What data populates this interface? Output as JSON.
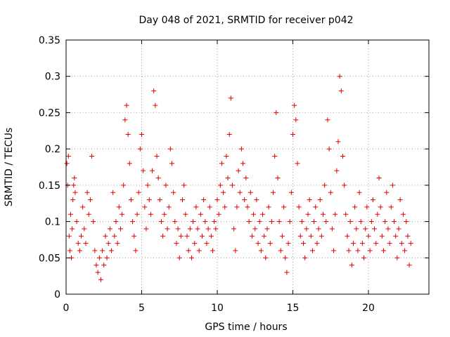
{
  "chart_data": {
    "type": "scatter",
    "title": "Day 048 of 2021, SRMTID for receiver p042",
    "xlabel": "GPS time / hours",
    "ylabel": "SRMTID / TECUs",
    "xlim": [
      0,
      24
    ],
    "ylim": [
      0,
      0.35
    ],
    "xticks": [
      0,
      5,
      10,
      15,
      20
    ],
    "xtick_labels": [
      "0",
      "5",
      "10",
      "15",
      "20"
    ],
    "yticks": [
      0,
      0.05,
      0.1,
      0.15,
      0.2,
      0.25,
      0.3,
      0.35
    ],
    "ytick_labels": [
      "0",
      "0.05",
      "0.1",
      "0.15",
      "0.2",
      "0.25",
      "0.3",
      "0.35"
    ],
    "grid": true,
    "marker": "plus",
    "color": "#e00000",
    "series": [
      {
        "name": "SRMTID",
        "points": [
          [
            0.05,
            0.18
          ],
          [
            0.1,
            0.15
          ],
          [
            0.15,
            0.19
          ],
          [
            0.2,
            0.08
          ],
          [
            0.25,
            0.06
          ],
          [
            0.3,
            0.11
          ],
          [
            0.35,
            0.05
          ],
          [
            0.4,
            0.09
          ],
          [
            0.45,
            0.13
          ],
          [
            0.5,
            0.15
          ],
          [
            0.55,
            0.16
          ],
          [
            0.6,
            0.14
          ],
          [
            0.7,
            0.1
          ],
          [
            0.8,
            0.07
          ],
          [
            0.9,
            0.06
          ],
          [
            1.0,
            0.08
          ],
          [
            1.1,
            0.12
          ],
          [
            1.2,
            0.09
          ],
          [
            1.3,
            0.07
          ],
          [
            1.4,
            0.14
          ],
          [
            1.5,
            0.11
          ],
          [
            1.6,
            0.13
          ],
          [
            1.7,
            0.19
          ],
          [
            1.8,
            0.1
          ],
          [
            1.9,
            0.06
          ],
          [
            2.0,
            0.04
          ],
          [
            2.1,
            0.03
          ],
          [
            2.2,
            0.05
          ],
          [
            2.3,
            0.02
          ],
          [
            2.4,
            0.06
          ],
          [
            2.5,
            0.04
          ],
          [
            2.6,
            0.08
          ],
          [
            2.7,
            0.05
          ],
          [
            2.8,
            0.07
          ],
          [
            2.9,
            0.09
          ],
          [
            3.0,
            0.06
          ],
          [
            3.1,
            0.14
          ],
          [
            3.2,
            0.08
          ],
          [
            3.3,
            0.1
          ],
          [
            3.4,
            0.07
          ],
          [
            3.5,
            0.12
          ],
          [
            3.6,
            0.09
          ],
          [
            3.7,
            0.11
          ],
          [
            3.8,
            0.15
          ],
          [
            3.9,
            0.24
          ],
          [
            4.0,
            0.26
          ],
          [
            4.1,
            0.22
          ],
          [
            4.2,
            0.18
          ],
          [
            4.3,
            0.13
          ],
          [
            4.4,
            0.1
          ],
          [
            4.5,
            0.08
          ],
          [
            4.6,
            0.06
          ],
          [
            4.7,
            0.11
          ],
          [
            4.8,
            0.14
          ],
          [
            4.9,
            0.2
          ],
          [
            5.0,
            0.22
          ],
          [
            5.1,
            0.17
          ],
          [
            5.2,
            0.12
          ],
          [
            5.3,
            0.09
          ],
          [
            5.4,
            0.15
          ],
          [
            5.5,
            0.13
          ],
          [
            5.6,
            0.11
          ],
          [
            5.7,
            0.17
          ],
          [
            5.8,
            0.28
          ],
          [
            5.9,
            0.26
          ],
          [
            6.0,
            0.19
          ],
          [
            6.1,
            0.16
          ],
          [
            6.2,
            0.13
          ],
          [
            6.3,
            0.1
          ],
          [
            6.4,
            0.08
          ],
          [
            6.5,
            0.11
          ],
          [
            6.6,
            0.15
          ],
          [
            6.7,
            0.09
          ],
          [
            6.8,
            0.12
          ],
          [
            6.9,
            0.2
          ],
          [
            7.0,
            0.18
          ],
          [
            7.1,
            0.14
          ],
          [
            7.2,
            0.1
          ],
          [
            7.3,
            0.07
          ],
          [
            7.4,
            0.09
          ],
          [
            7.5,
            0.05
          ],
          [
            7.6,
            0.08
          ],
          [
            7.7,
            0.13
          ],
          [
            7.8,
            0.15
          ],
          [
            7.9,
            0.11
          ],
          [
            8.0,
            0.08
          ],
          [
            8.1,
            0.06
          ],
          [
            8.2,
            0.09
          ],
          [
            8.3,
            0.05
          ],
          [
            8.4,
            0.1
          ],
          [
            8.5,
            0.07
          ],
          [
            8.6,
            0.12
          ],
          [
            8.7,
            0.09
          ],
          [
            8.8,
            0.06
          ],
          [
            8.9,
            0.11
          ],
          [
            9.0,
            0.08
          ],
          [
            9.1,
            0.13
          ],
          [
            9.2,
            0.1
          ],
          [
            9.3,
            0.07
          ],
          [
            9.4,
            0.09
          ],
          [
            9.5,
            0.12
          ],
          [
            9.6,
            0.08
          ],
          [
            9.7,
            0.06
          ],
          [
            9.8,
            0.1
          ],
          [
            9.9,
            0.09
          ],
          [
            10.0,
            0.13
          ],
          [
            10.1,
            0.11
          ],
          [
            10.2,
            0.15
          ],
          [
            10.3,
            0.18
          ],
          [
            10.4,
            0.14
          ],
          [
            10.5,
            0.12
          ],
          [
            10.6,
            0.19
          ],
          [
            10.7,
            0.16
          ],
          [
            10.8,
            0.22
          ],
          [
            10.9,
            0.27
          ],
          [
            11.0,
            0.15
          ],
          [
            11.1,
            0.09
          ],
          [
            11.2,
            0.06
          ],
          [
            11.3,
            0.12
          ],
          [
            11.4,
            0.17
          ],
          [
            11.5,
            0.14
          ],
          [
            11.6,
            0.2
          ],
          [
            11.7,
            0.18
          ],
          [
            11.8,
            0.13
          ],
          [
            11.9,
            0.16
          ],
          [
            12.0,
            0.12
          ],
          [
            12.1,
            0.1
          ],
          [
            12.2,
            0.14
          ],
          [
            12.3,
            0.08
          ],
          [
            12.4,
            0.11
          ],
          [
            12.5,
            0.09
          ],
          [
            12.6,
            0.13
          ],
          [
            12.7,
            0.07
          ],
          [
            12.8,
            0.1
          ],
          [
            12.9,
            0.06
          ],
          [
            13.0,
            0.11
          ],
          [
            13.1,
            0.08
          ],
          [
            13.2,
            0.05
          ],
          [
            13.3,
            0.09
          ],
          [
            13.4,
            0.12
          ],
          [
            13.5,
            0.07
          ],
          [
            13.6,
            0.1
          ],
          [
            13.7,
            0.14
          ],
          [
            13.8,
            0.19
          ],
          [
            13.9,
            0.25
          ],
          [
            14.0,
            0.16
          ],
          [
            14.1,
            0.1
          ],
          [
            14.2,
            0.06
          ],
          [
            14.3,
            0.08
          ],
          [
            14.4,
            0.12
          ],
          [
            14.5,
            0.05
          ],
          [
            14.6,
            0.03
          ],
          [
            14.7,
            0.07
          ],
          [
            14.8,
            0.1
          ],
          [
            14.9,
            0.14
          ],
          [
            15.0,
            0.22
          ],
          [
            15.1,
            0.26
          ],
          [
            15.2,
            0.24
          ],
          [
            15.3,
            0.18
          ],
          [
            15.4,
            0.12
          ],
          [
            15.5,
            0.08
          ],
          [
            15.6,
            0.1
          ],
          [
            15.7,
            0.07
          ],
          [
            15.8,
            0.05
          ],
          [
            15.9,
            0.09
          ],
          [
            16.0,
            0.11
          ],
          [
            16.1,
            0.13
          ],
          [
            16.2,
            0.08
          ],
          [
            16.3,
            0.06
          ],
          [
            16.4,
            0.1
          ],
          [
            16.5,
            0.12
          ],
          [
            16.6,
            0.07
          ],
          [
            16.7,
            0.09
          ],
          [
            16.8,
            0.13
          ],
          [
            16.9,
            0.08
          ],
          [
            17.0,
            0.11
          ],
          [
            17.1,
            0.15
          ],
          [
            17.2,
            0.1
          ],
          [
            17.3,
            0.24
          ],
          [
            17.4,
            0.2
          ],
          [
            17.5,
            0.14
          ],
          [
            17.6,
            0.09
          ],
          [
            17.7,
            0.06
          ],
          [
            17.8,
            0.11
          ],
          [
            17.9,
            0.17
          ],
          [
            18.0,
            0.21
          ],
          [
            18.1,
            0.3
          ],
          [
            18.2,
            0.28
          ],
          [
            18.3,
            0.19
          ],
          [
            18.4,
            0.15
          ],
          [
            18.5,
            0.11
          ],
          [
            18.6,
            0.08
          ],
          [
            18.7,
            0.06
          ],
          [
            18.8,
            0.1
          ],
          [
            18.9,
            0.04
          ],
          [
            19.0,
            0.07
          ],
          [
            19.1,
            0.12
          ],
          [
            19.2,
            0.09
          ],
          [
            19.3,
            0.06
          ],
          [
            19.4,
            0.14
          ],
          [
            19.5,
            0.1
          ],
          [
            19.6,
            0.07
          ],
          [
            19.7,
            0.05
          ],
          [
            19.8,
            0.09
          ],
          [
            19.9,
            0.12
          ],
          [
            20.0,
            0.08
          ],
          [
            20.1,
            0.06
          ],
          [
            20.2,
            0.1
          ],
          [
            20.3,
            0.13
          ],
          [
            20.4,
            0.09
          ],
          [
            20.5,
            0.07
          ],
          [
            20.6,
            0.11
          ],
          [
            20.7,
            0.16
          ],
          [
            20.8,
            0.12
          ],
          [
            20.9,
            0.08
          ],
          [
            21.0,
            0.06
          ],
          [
            21.1,
            0.1
          ],
          [
            21.2,
            0.14
          ],
          [
            21.3,
            0.09
          ],
          [
            21.4,
            0.07
          ],
          [
            21.5,
            0.12
          ],
          [
            21.6,
            0.15
          ],
          [
            21.7,
            0.1
          ],
          [
            21.8,
            0.08
          ],
          [
            21.9,
            0.05
          ],
          [
            22.0,
            0.09
          ],
          [
            22.1,
            0.13
          ],
          [
            22.2,
            0.07
          ],
          [
            22.3,
            0.11
          ],
          [
            22.4,
            0.06
          ],
          [
            22.5,
            0.1
          ],
          [
            22.6,
            0.08
          ],
          [
            22.7,
            0.04
          ],
          [
            22.8,
            0.07
          ]
        ]
      }
    ]
  }
}
